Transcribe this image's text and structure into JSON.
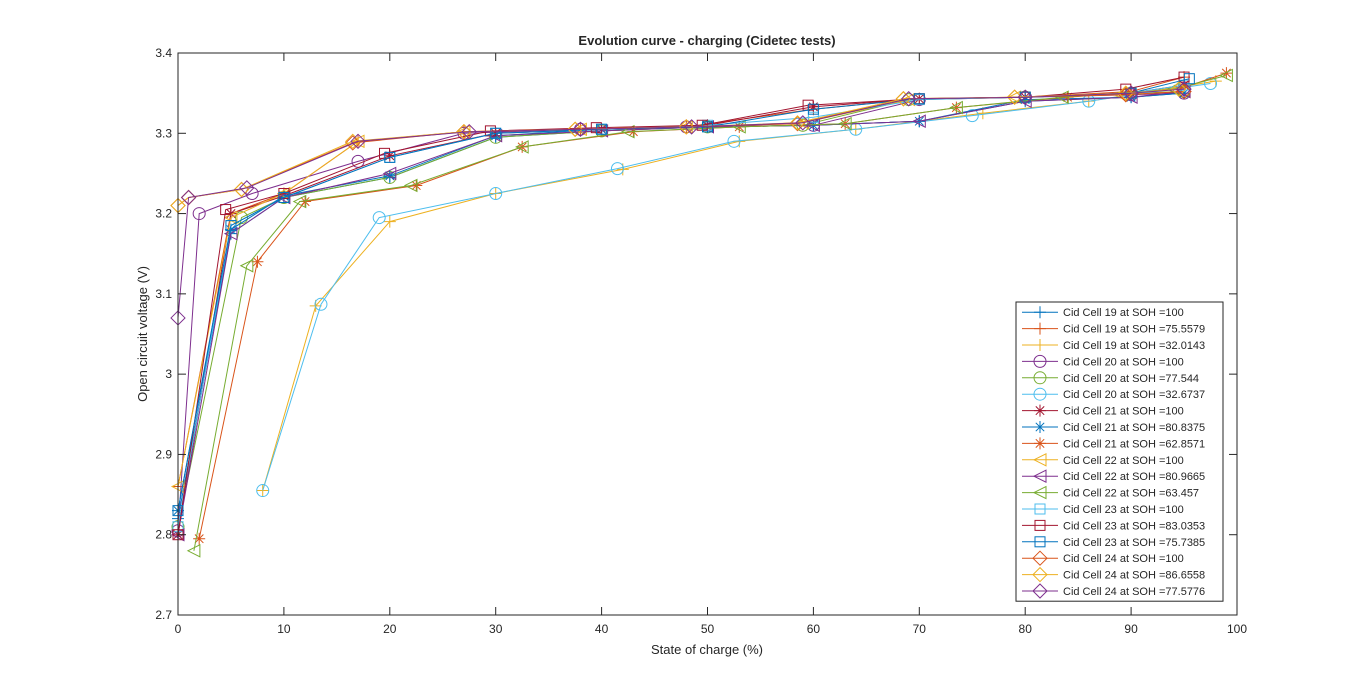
{
  "chart_data": {
    "type": "line",
    "title": "Evolution curve - charging (Cidetec tests)",
    "xlabel": "State of charge (%)",
    "ylabel": "Open circuit voltage (V)",
    "xlim": [
      0,
      100
    ],
    "ylim": [
      2.7,
      3.4
    ],
    "xticks": [
      "0",
      "10",
      "20",
      "30",
      "40",
      "50",
      "60",
      "70",
      "80",
      "90",
      "100"
    ],
    "yticks": [
      "2.7",
      "2.8",
      "2.9",
      "3",
      "3.1",
      "3.2",
      "3.3",
      "3.4"
    ],
    "grid": false,
    "legend_position": "bottom-right",
    "series": [
      {
        "name": "Cid Cell 19 at SOH =100",
        "color": "#0072BD",
        "marker": "plus",
        "x": [
          0,
          5,
          10,
          20,
          30,
          40,
          50,
          60,
          70,
          80,
          90,
          95
        ],
        "y": [
          2.82,
          3.175,
          3.22,
          3.245,
          3.295,
          3.303,
          3.308,
          3.31,
          3.315,
          3.34,
          3.345,
          3.35
        ]
      },
      {
        "name": "Cid Cell 19 at SOH =75.5579",
        "color": "#D95319",
        "marker": "plus",
        "x": [
          0,
          5,
          10,
          17,
          27,
          38,
          48,
          60,
          70,
          80,
          90,
          95
        ],
        "y": [
          2.86,
          3.2,
          3.225,
          3.29,
          3.302,
          3.305,
          3.308,
          3.33,
          3.343,
          3.345,
          3.352,
          3.37
        ]
      },
      {
        "name": "Cid Cell 19 at SOH =32.0143",
        "color": "#EDB120",
        "marker": "plus",
        "x": [
          8,
          13,
          20,
          30,
          42,
          53,
          64,
          76,
          86,
          98
        ],
        "y": [
          2.855,
          3.085,
          3.19,
          3.225,
          3.255,
          3.29,
          3.305,
          3.325,
          3.34,
          3.365
        ]
      },
      {
        "name": "Cid Cell 20 at SOH =100",
        "color": "#7E2F8E",
        "marker": "circle",
        "x": [
          0,
          2,
          7,
          17,
          27,
          38,
          48,
          60,
          70,
          80,
          90,
          95
        ],
        "y": [
          2.805,
          3.2,
          3.225,
          3.265,
          3.3,
          3.305,
          3.308,
          3.31,
          3.342,
          3.345,
          3.348,
          3.35
        ]
      },
      {
        "name": "Cid Cell 20 at SOH =77.544",
        "color": "#77AC30",
        "marker": "circle",
        "x": [
          0,
          6,
          10,
          20,
          30,
          40,
          50,
          59,
          69,
          80,
          90,
          95
        ],
        "y": [
          2.81,
          3.195,
          3.22,
          3.245,
          3.295,
          3.303,
          3.308,
          3.31,
          3.342,
          3.345,
          3.35,
          3.352
        ]
      },
      {
        "name": "Cid Cell 20 at SOH =32.6737",
        "color": "#4DBEEE",
        "marker": "circle",
        "x": [
          8,
          13.5,
          19,
          30,
          41.5,
          52.5,
          64,
          75,
          86,
          97.5
        ],
        "y": [
          2.855,
          3.087,
          3.195,
          3.225,
          3.256,
          3.29,
          3.305,
          3.322,
          3.34,
          3.362
        ]
      },
      {
        "name": "Cid Cell 21 at SOH =100",
        "color": "#A2142F",
        "marker": "asterisk",
        "x": [
          0,
          5,
          10,
          20,
          30,
          40,
          50,
          60,
          70,
          80,
          90,
          95
        ],
        "y": [
          2.8,
          3.2,
          3.222,
          3.272,
          3.3,
          3.305,
          3.31,
          3.333,
          3.343,
          3.345,
          3.35,
          3.36
        ]
      },
      {
        "name": "Cid Cell 21 at SOH =80.8375",
        "color": "#0072BD",
        "marker": "asterisk",
        "x": [
          0,
          5,
          10,
          20,
          30,
          40,
          50,
          60,
          70,
          80,
          90,
          95
        ],
        "y": [
          2.83,
          3.18,
          3.222,
          3.247,
          3.297,
          3.305,
          3.308,
          3.31,
          3.315,
          3.342,
          3.345,
          3.35
        ]
      },
      {
        "name": "Cid Cell 21 at SOH =62.8571",
        "color": "#D95319",
        "marker": "asterisk",
        "x": [
          2,
          7.5,
          12,
          22.5,
          32.5,
          43,
          53,
          63,
          73.5,
          84,
          94.5,
          99
        ],
        "y": [
          2.795,
          3.14,
          3.215,
          3.235,
          3.283,
          3.302,
          3.308,
          3.312,
          3.332,
          3.345,
          3.355,
          3.375
        ]
      },
      {
        "name": "Cid Cell 22 at SOH =100",
        "color": "#EDB120",
        "marker": "triangle-left",
        "x": [
          0,
          5,
          10,
          17,
          27,
          38,
          48,
          59,
          69,
          79,
          89,
          95
        ],
        "y": [
          2.86,
          3.195,
          3.225,
          3.29,
          3.302,
          3.305,
          3.308,
          3.313,
          3.342,
          3.345,
          3.348,
          3.352
        ]
      },
      {
        "name": "Cid Cell 22 at SOH =80.9665",
        "color": "#7E2F8E",
        "marker": "triangle-left",
        "x": [
          0,
          5,
          10,
          20,
          30,
          40,
          50,
          60,
          70,
          80,
          90,
          95
        ],
        "y": [
          2.8,
          3.175,
          3.22,
          3.25,
          3.297,
          3.303,
          3.308,
          3.31,
          3.315,
          3.34,
          3.345,
          3.352
        ]
      },
      {
        "name": "Cid Cell 22 at SOH =63.457",
        "color": "#77AC30",
        "marker": "triangle-left",
        "x": [
          1.5,
          6.5,
          11.5,
          22,
          32.5,
          42.5,
          53,
          63,
          73.5,
          83.5,
          94,
          99
        ],
        "y": [
          2.78,
          3.135,
          3.215,
          3.235,
          3.283,
          3.302,
          3.308,
          3.312,
          3.332,
          3.345,
          3.355,
          3.372
        ]
      },
      {
        "name": "Cid Cell 23 at SOH =100",
        "color": "#4DBEEE",
        "marker": "square",
        "x": [
          0,
          5,
          10,
          20,
          30,
          40,
          50,
          60,
          70,
          80,
          90,
          95
        ],
        "y": [
          2.81,
          3.185,
          3.22,
          3.27,
          3.3,
          3.305,
          3.31,
          3.32,
          3.342,
          3.345,
          3.35,
          3.36
        ]
      },
      {
        "name": "Cid Cell 23 at SOH =83.0353",
        "color": "#A2142F",
        "marker": "square",
        "x": [
          0,
          4.5,
          10,
          19.5,
          29.5,
          39.5,
          49.5,
          59.5,
          70,
          80,
          89.5,
          95
        ],
        "y": [
          2.8,
          3.205,
          3.225,
          3.275,
          3.303,
          3.307,
          3.31,
          3.335,
          3.343,
          3.345,
          3.355,
          3.37
        ]
      },
      {
        "name": "Cid Cell 23 at SOH =75.7385",
        "color": "#0072BD",
        "marker": "square",
        "x": [
          0,
          5,
          10,
          20,
          30,
          40,
          50,
          60,
          70,
          80,
          90,
          95.5
        ],
        "y": [
          2.83,
          3.185,
          3.22,
          3.27,
          3.3,
          3.305,
          3.308,
          3.33,
          3.343,
          3.345,
          3.35,
          3.368
        ]
      },
      {
        "name": "Cid Cell 24 at SOH =100",
        "color": "#D95319",
        "marker": "diamond",
        "x": [
          0,
          1,
          6,
          16.5,
          27,
          37.5,
          48,
          58.5,
          68.5,
          79,
          89.5,
          95
        ],
        "y": [
          3.21,
          3.22,
          3.23,
          3.288,
          3.302,
          3.305,
          3.308,
          3.312,
          3.343,
          3.345,
          3.348,
          3.352
        ]
      },
      {
        "name": "Cid Cell 24 at SOH =86.6558",
        "color": "#EDB120",
        "marker": "diamond",
        "x": [
          0,
          1,
          6,
          16.5,
          27,
          37.5,
          48,
          58.5,
          68.5,
          79,
          89.5,
          94.5
        ],
        "y": [
          3.21,
          3.22,
          3.23,
          3.29,
          3.302,
          3.305,
          3.308,
          3.313,
          3.343,
          3.345,
          3.35,
          3.355
        ]
      },
      {
        "name": "Cid Cell 24 at SOH =77.5776",
        "color": "#7E2F8E",
        "marker": "diamond",
        "x": [
          0,
          1,
          6.5,
          17,
          27.5,
          38,
          48.5,
          59,
          69,
          80,
          90,
          95
        ],
        "y": [
          3.07,
          3.22,
          3.232,
          3.29,
          3.302,
          3.305,
          3.308,
          3.313,
          3.343,
          3.345,
          3.35,
          3.355
        ]
      }
    ]
  }
}
